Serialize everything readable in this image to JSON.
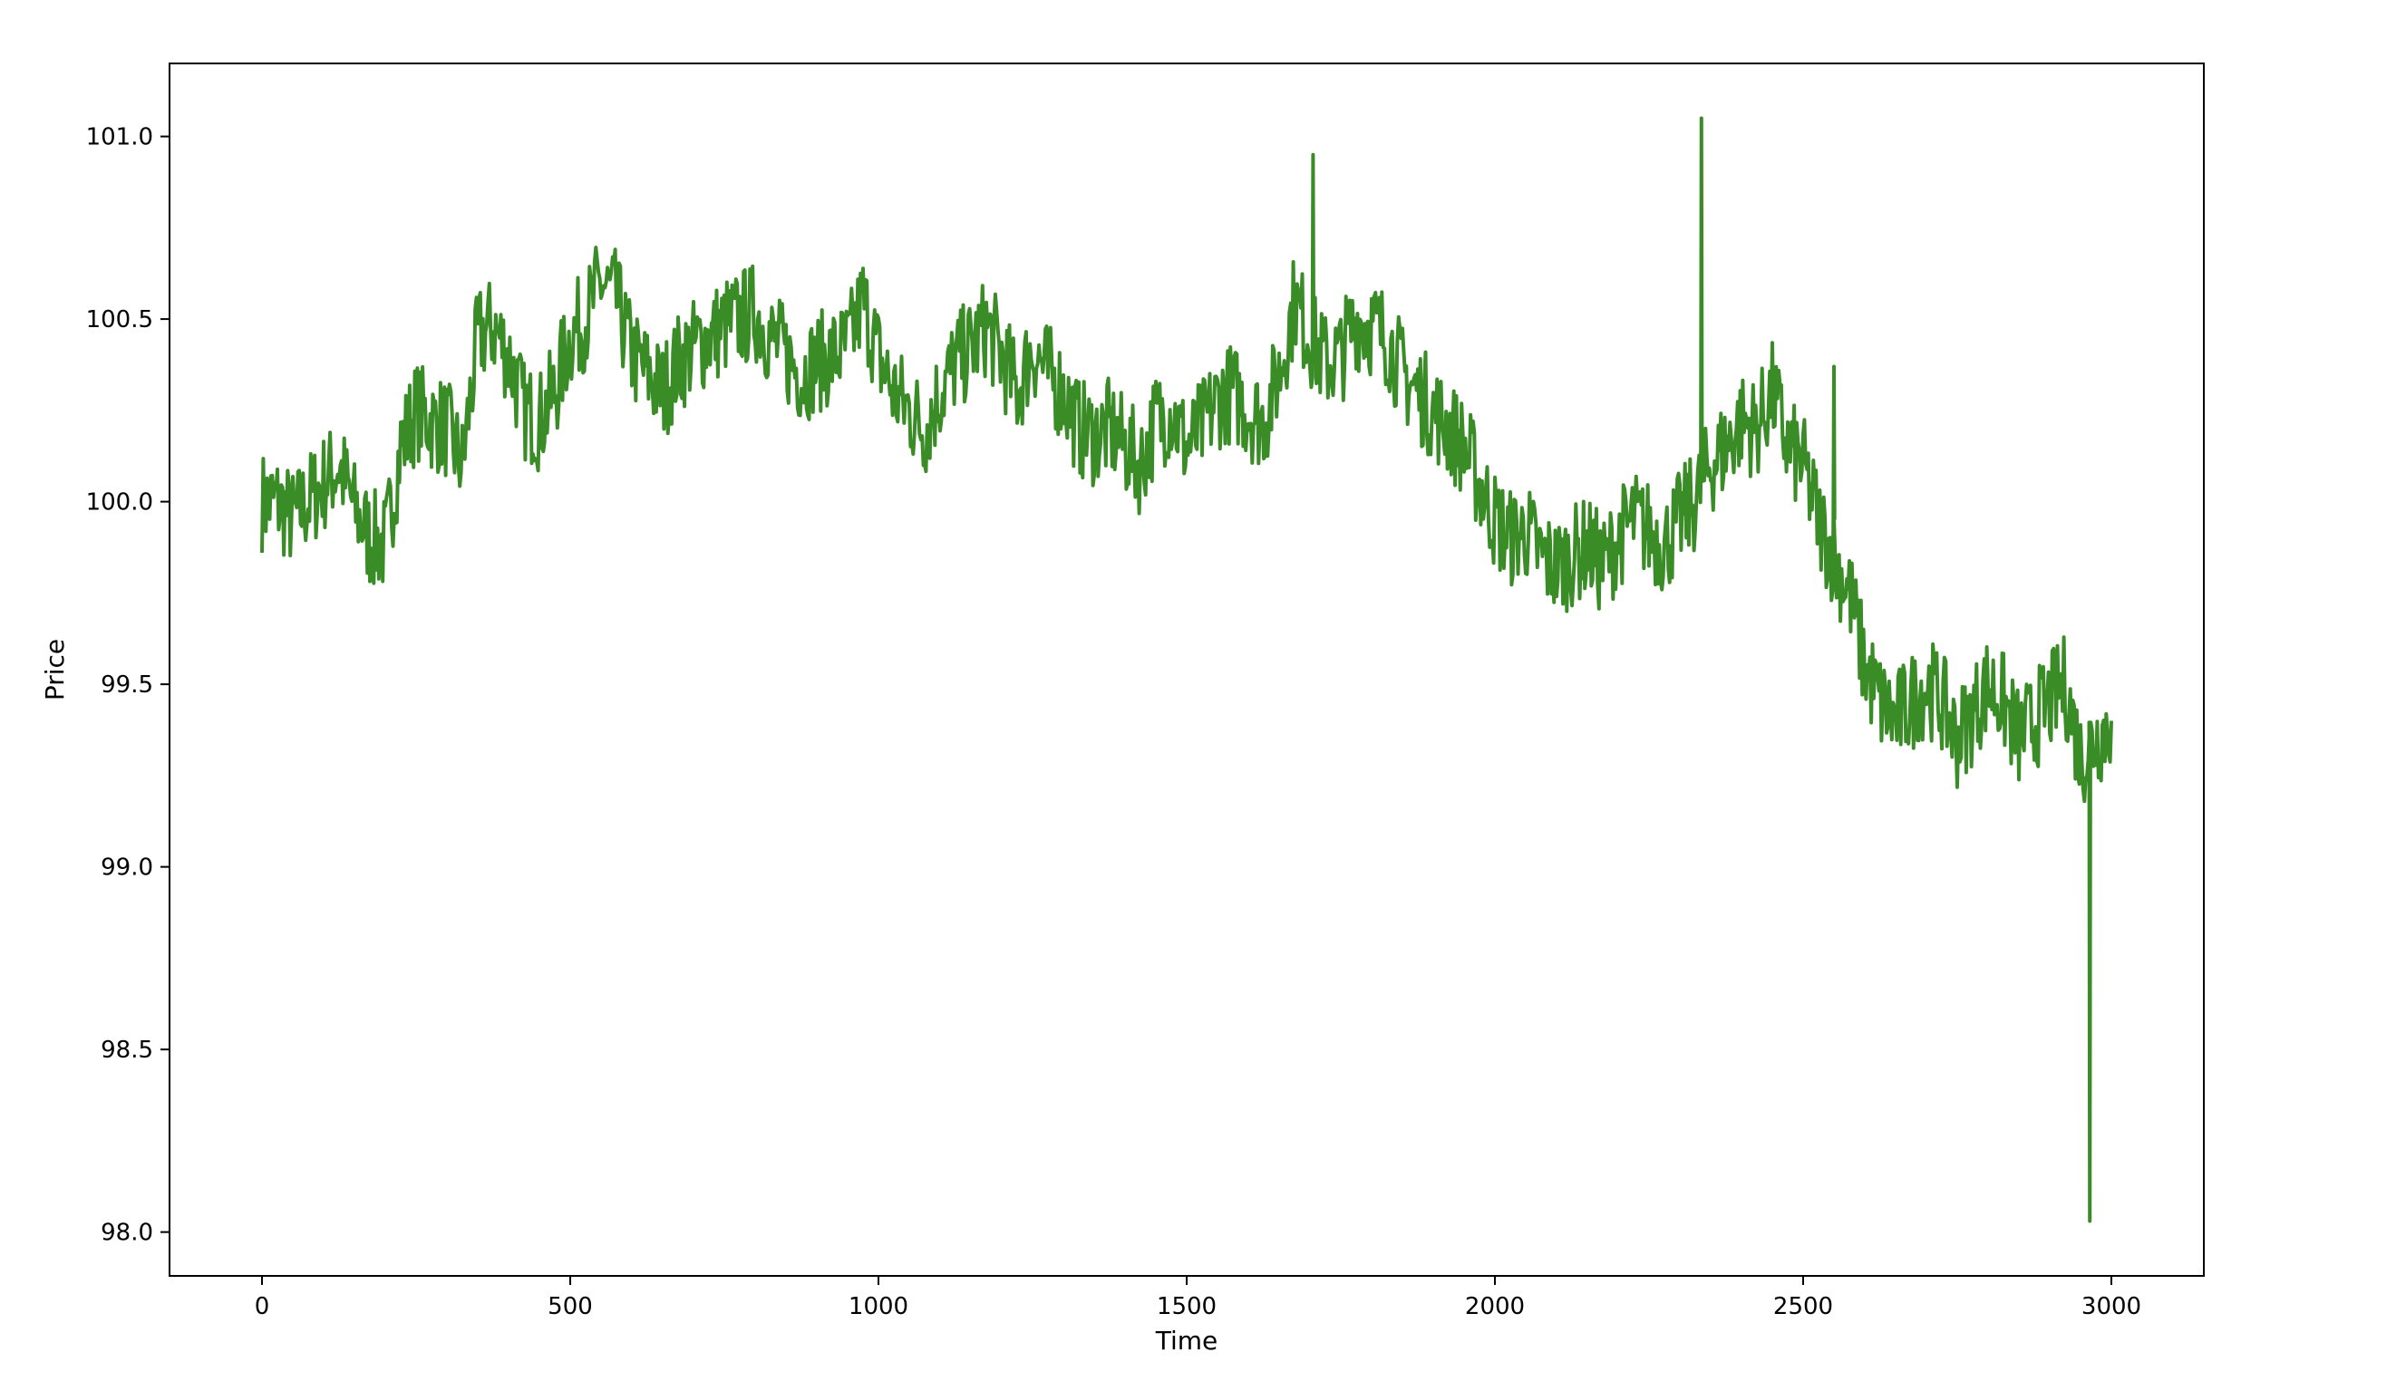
{
  "chart_data": {
    "type": "line",
    "title": "",
    "xlabel": "Time",
    "ylabel": "Price",
    "xlim": [
      -150,
      3150
    ],
    "ylim": [
      97.88,
      101.2
    ],
    "xticks": [
      0,
      500,
      1000,
      1500,
      2000,
      2500,
      3000
    ],
    "xtick_labels": [
      "0",
      "500",
      "1000",
      "1500",
      "2000",
      "2500",
      "3000"
    ],
    "yticks": [
      98.0,
      98.5,
      99.0,
      99.5,
      100.0,
      100.5,
      101.0
    ],
    "ytick_labels": [
      "98.0",
      "98.5",
      "99.0",
      "99.5",
      "100.0",
      "100.5",
      "101.0"
    ],
    "grid": false,
    "legend": "none",
    "line_color": "#3a8c27",
    "series": [
      {
        "name": "",
        "x": [
          0,
          25,
          50,
          75,
          100,
          125,
          150,
          175,
          200,
          225,
          250,
          275,
          300,
          325,
          350,
          375,
          400,
          425,
          450,
          475,
          500,
          525,
          550,
          575,
          600,
          625,
          650,
          675,
          700,
          725,
          750,
          775,
          800,
          825,
          850,
          875,
          900,
          925,
          950,
          975,
          1000,
          1025,
          1050,
          1075,
          1100,
          1125,
          1150,
          1175,
          1200,
          1225,
          1250,
          1275,
          1300,
          1325,
          1350,
          1375,
          1400,
          1425,
          1450,
          1475,
          1500,
          1525,
          1550,
          1575,
          1600,
          1625,
          1650,
          1675,
          1700,
          1725,
          1750,
          1775,
          1800,
          1825,
          1850,
          1875,
          1900,
          1925,
          1950,
          1975,
          2000,
          2025,
          2050,
          2075,
          2100,
          2125,
          2150,
          2175,
          2200,
          2225,
          2250,
          2275,
          2300,
          2325,
          2350,
          2375,
          2400,
          2425,
          2450,
          2475,
          2500,
          2525,
          2550,
          2575,
          2600,
          2625,
          2650,
          2675,
          2700,
          2725,
          2750,
          2775,
          2800,
          2825,
          2850,
          2875,
          2900,
          2925,
          2950,
          2975,
          3000
        ],
        "y": [
          100.0,
          100.0,
          99.95,
          100.0,
          100.05,
          100.1,
          99.98,
          99.9,
          99.88,
          100.15,
          100.25,
          100.22,
          100.2,
          100.1,
          100.45,
          100.48,
          100.4,
          100.25,
          100.22,
          100.3,
          100.45,
          100.5,
          100.6,
          100.55,
          100.4,
          100.35,
          100.3,
          100.38,
          100.42,
          100.45,
          100.48,
          100.5,
          100.52,
          100.45,
          100.4,
          100.35,
          100.38,
          100.4,
          100.42,
          100.55,
          100.4,
          100.3,
          100.25,
          100.2,
          100.3,
          100.38,
          100.42,
          100.48,
          100.4,
          100.3,
          100.42,
          100.35,
          100.3,
          100.2,
          100.18,
          100.2,
          100.15,
          100.1,
          100.22,
          100.25,
          100.15,
          100.2,
          100.28,
          100.3,
          100.25,
          100.22,
          100.35,
          100.55,
          100.45,
          100.38,
          100.4,
          100.5,
          100.48,
          100.45,
          100.35,
          100.3,
          100.25,
          100.2,
          100.15,
          100.05,
          99.95,
          99.9,
          99.92,
          99.85,
          99.82,
          99.85,
          99.88,
          99.82,
          99.9,
          99.95,
          99.92,
          99.88,
          99.95,
          100.0,
          100.1,
          100.15,
          100.22,
          100.2,
          100.3,
          100.15,
          100.1,
          99.95,
          99.85,
          99.75,
          99.55,
          99.45,
          99.4,
          99.45,
          99.5,
          99.45,
          99.35,
          99.42,
          99.5,
          99.45,
          99.35,
          99.4,
          99.45,
          99.5,
          99.3,
          99.35,
          99.4
        ]
      }
    ],
    "annotated_extremes": [
      {
        "x": 1705,
        "y": 100.95
      },
      {
        "x": 2335,
        "y": 101.05
      },
      {
        "x": 2550,
        "y": 100.37
      },
      {
        "x": 2965,
        "y": 98.03
      }
    ]
  }
}
